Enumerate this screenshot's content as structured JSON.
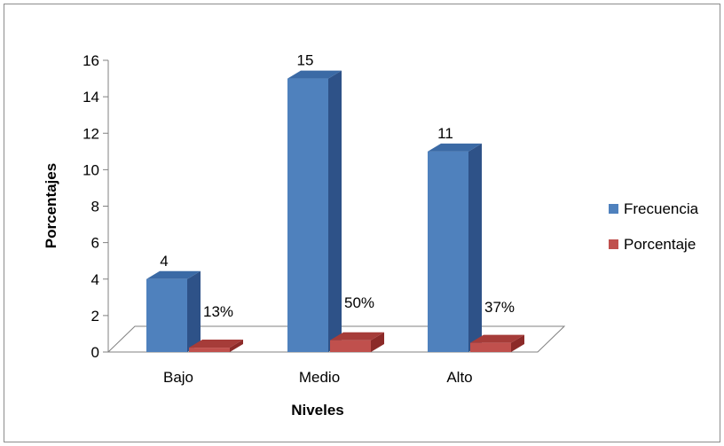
{
  "chart_data": {
    "type": "bar",
    "categories": [
      "Bajo",
      "Medio",
      "Alto"
    ],
    "series": [
      {
        "name": "Frecuencia",
        "values": [
          4,
          15,
          11
        ],
        "labels": [
          "4",
          "15",
          "11"
        ],
        "color": "#4f81bd",
        "side_color": "#2e5288",
        "top_color": "#3b6aa5"
      },
      {
        "name": "Porcentaje",
        "values": [
          0.13,
          0.5,
          0.37
        ],
        "labels": [
          "13%",
          "50%",
          "37%"
        ],
        "color": "#c0504d",
        "side_color": "#8c2a28",
        "top_color": "#a63c39"
      }
    ],
    "xlabel": "Niveles",
    "ylabel": "Porcentajes",
    "ylim": [
      0,
      16
    ],
    "yticks": [
      0,
      2,
      4,
      6,
      8,
      10,
      12,
      14,
      16
    ],
    "legend": "right"
  }
}
